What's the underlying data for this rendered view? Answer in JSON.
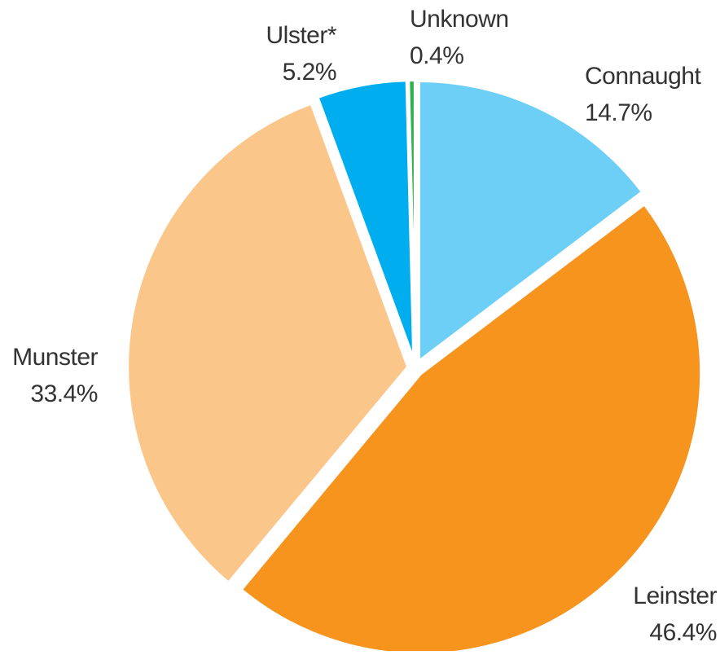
{
  "chart_data": {
    "type": "pie",
    "categories": [
      "Connaught",
      "Leinster",
      "Munster",
      "Ulster*",
      "Unknown"
    ],
    "values": [
      14.7,
      46.4,
      33.4,
      5.2,
      0.4
    ],
    "value_labels": [
      "14.7%",
      "46.4%",
      "33.4%",
      "5.2%",
      "0.4%"
    ],
    "colors": [
      "#6dcff6",
      "#f7941d",
      "#fbc68a",
      "#00aeef",
      "#2bb34b"
    ]
  }
}
